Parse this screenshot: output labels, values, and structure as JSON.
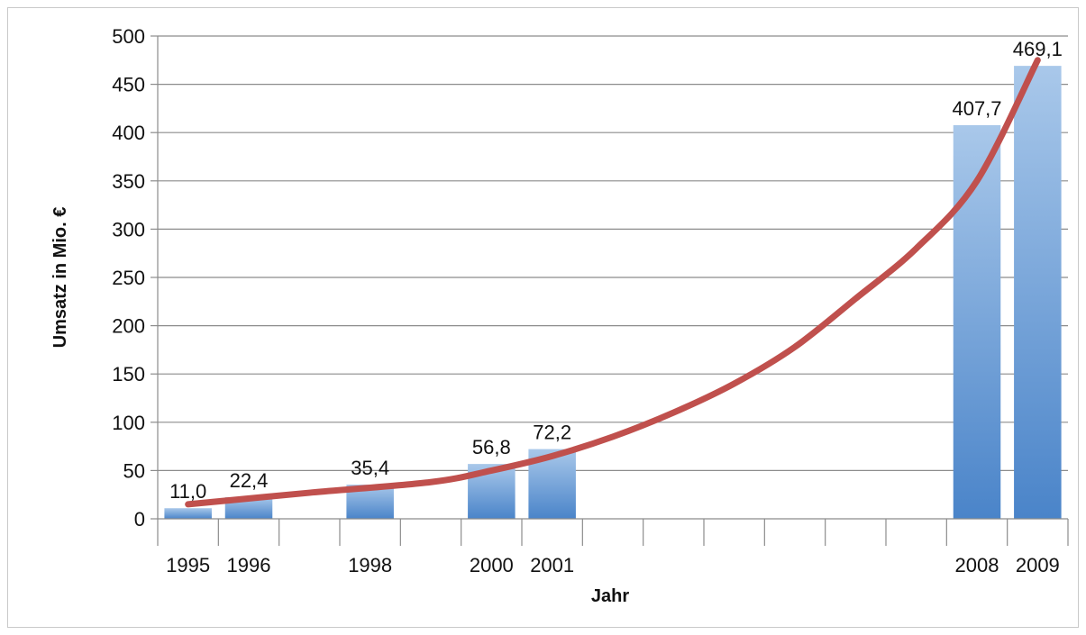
{
  "chart_data": {
    "type": "bar",
    "xlabel": "Jahr",
    "ylabel": "Umsatz in Mio. €",
    "ylim": [
      0,
      500
    ],
    "yticks": [
      0,
      50,
      100,
      150,
      200,
      250,
      300,
      350,
      400,
      450,
      500
    ],
    "x_range": [
      1994.5,
      2009.5
    ],
    "grid": true,
    "legend": "none",
    "colors": {
      "bar_top": "#a9c8ea",
      "bar_bottom": "#4a84c9",
      "trend": "#c0504d",
      "grid": "#8c8c8c"
    },
    "bars": [
      {
        "year": 1995,
        "value": 11.0,
        "label": "11,0"
      },
      {
        "year": 1996,
        "value": 22.4,
        "label": "22,4"
      },
      {
        "year": 1998,
        "value": 35.4,
        "label": "35,4"
      },
      {
        "year": 2000,
        "value": 56.8,
        "label": "56,8"
      },
      {
        "year": 2001,
        "value": 72.2,
        "label": "72,2"
      },
      {
        "year": 2008,
        "value": 407.7,
        "label": "407,7"
      },
      {
        "year": 2009,
        "value": 469.1,
        "label": "469,1"
      }
    ],
    "trendline": {
      "type": "exponential",
      "points": [
        {
          "year": 1995,
          "value": 15
        },
        {
          "year": 1997,
          "value": 27
        },
        {
          "year": 1999,
          "value": 38
        },
        {
          "year": 2000,
          "value": 50
        },
        {
          "year": 2001,
          "value": 65
        },
        {
          "year": 2002,
          "value": 85
        },
        {
          "year": 2003,
          "value": 110
        },
        {
          "year": 2004,
          "value": 140
        },
        {
          "year": 2005,
          "value": 178
        },
        {
          "year": 2006,
          "value": 228
        },
        {
          "year": 2007,
          "value": 280
        },
        {
          "year": 2008,
          "value": 350
        },
        {
          "year": 2009,
          "value": 475
        }
      ]
    }
  }
}
